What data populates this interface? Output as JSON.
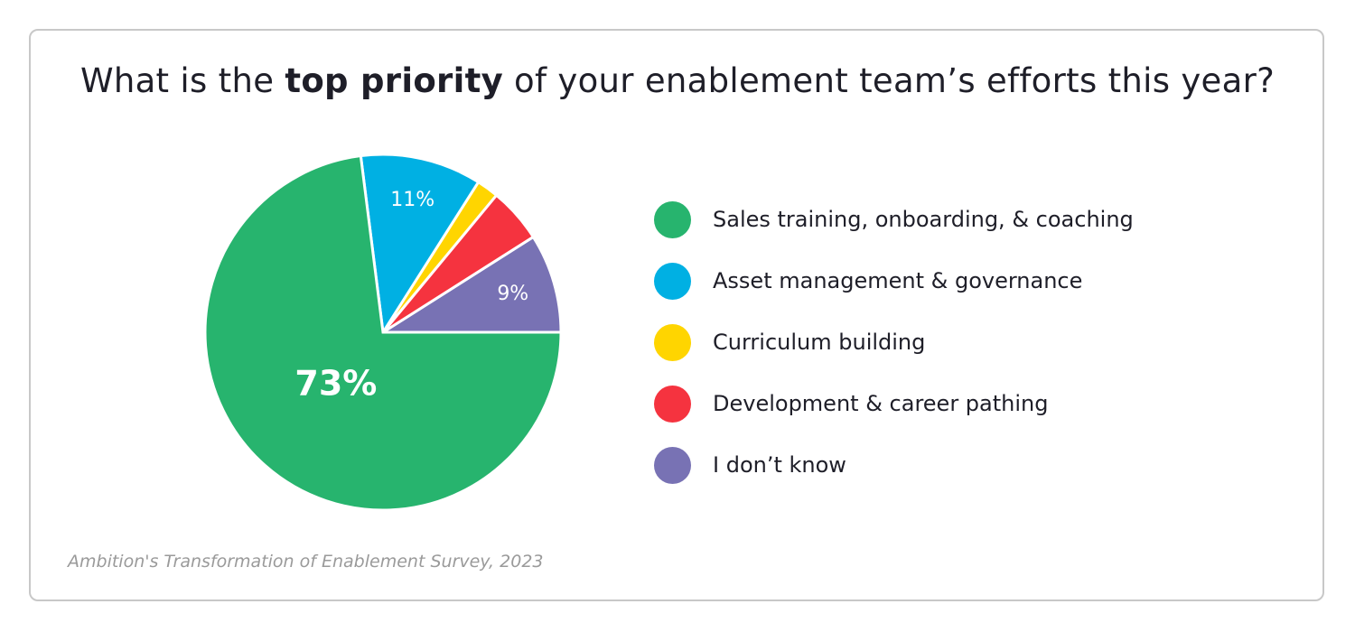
{
  "title": {
    "pre": "What is the ",
    "bold": "top priority",
    "post": " of your enablement team’s efforts this year?"
  },
  "source": "Ambition's Transformation of Enablement Survey, 2023",
  "chart_data": {
    "type": "pie",
    "title": "What is the top priority of your enablement team’s efforts this year?",
    "legend_placement": "right",
    "slices": [
      {
        "name": "Sales training, onboarding, & coaching",
        "value": 73,
        "label": "73%",
        "color": "#27b46e"
      },
      {
        "name": "Asset management & governance",
        "value": 11,
        "label": "11%",
        "color": "#00b0e3"
      },
      {
        "name": "Curriculum building",
        "value": 2,
        "label": "",
        "color": "#ffd500"
      },
      {
        "name": "Development & career pathing",
        "value": 5,
        "label": "",
        "color": "#f5333f"
      },
      {
        "name": "I don’t know",
        "value": 9,
        "label": "9%",
        "color": "#7872b4"
      }
    ]
  }
}
